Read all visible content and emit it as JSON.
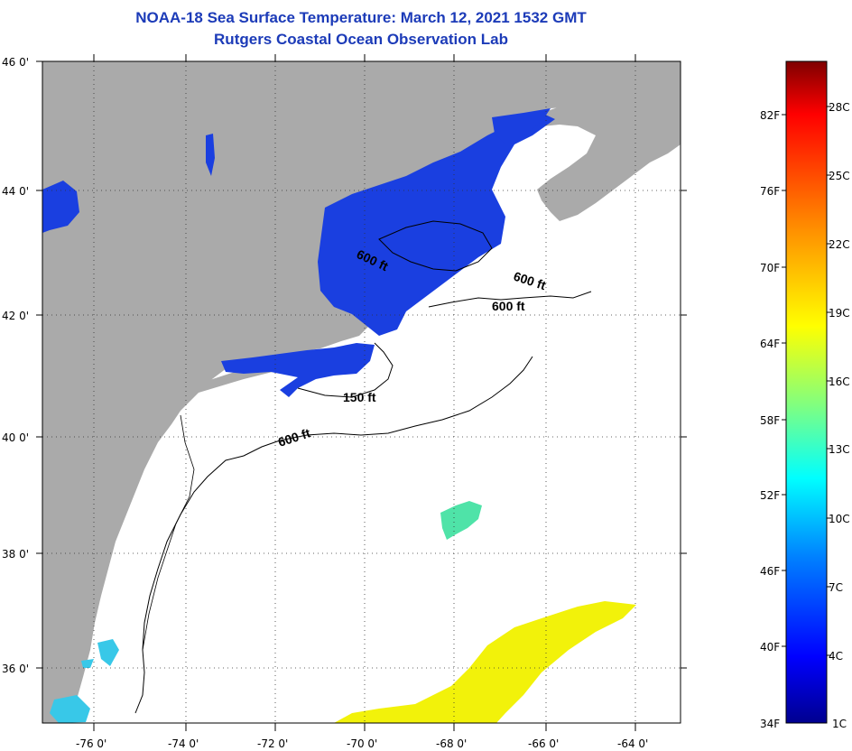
{
  "header": {
    "title": "NOAA-18 Sea Surface Temperature:  March 12, 2021 1532 GMT",
    "subtitle": "Rutgers Coastal Ocean Observation Lab"
  },
  "map": {
    "lat_labels": [
      "46 0'",
      "44 0'",
      "42 0'",
      "40 0'",
      "38 0'",
      "36 0'"
    ],
    "lon_labels": [
      "-76 0'",
      "-74 0'",
      "-72 0'",
      "-70 0'",
      "-68 0'",
      "-66 0'",
      "-64 0'"
    ],
    "isobath_labels": [
      "600 ft",
      "600 ft",
      "600 ft",
      "600 ft",
      "150 ft"
    ],
    "colors": {
      "land": "#aaaaaa",
      "ocean_nodata": "#ffffff",
      "cold_water": "#1a3fe0",
      "mid_water": "#4fe3a8",
      "warm_water": "#f2f20a",
      "cyan_water": "#38c8e8"
    }
  },
  "colorbar": {
    "fahrenheit_labels": [
      "82F",
      "76F",
      "70F",
      "64F",
      "58F",
      "52F",
      "46F",
      "40F",
      "34F"
    ],
    "celsius_labels": [
      "28C",
      "25C",
      "22C",
      "19C",
      "16C",
      "13C",
      "10C",
      "7C",
      "4C",
      "1C"
    ],
    "gradient_colors": [
      "#7f0000",
      "#ff0000",
      "#ff8c00",
      "#ffff00",
      "#80ff80",
      "#00ffff",
      "#0080ff",
      "#0000ff",
      "#00008f"
    ]
  }
}
